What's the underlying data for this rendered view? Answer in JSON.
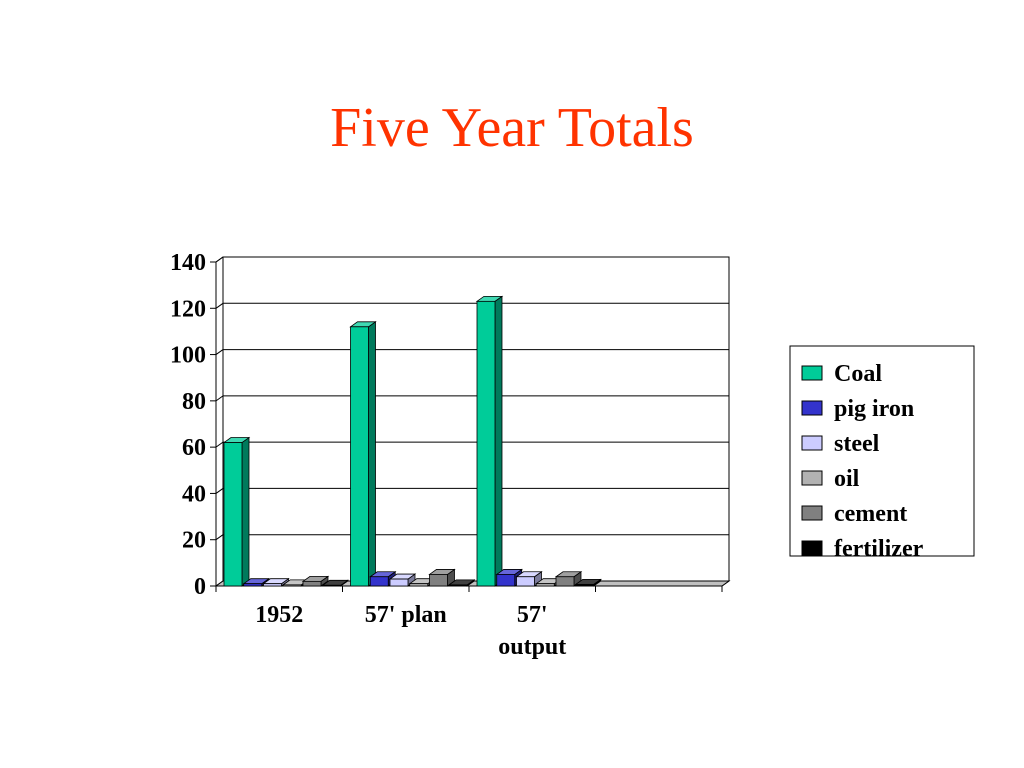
{
  "slide": {
    "title": "Five Year Totals",
    "title_color": "#ff3300"
  },
  "chart_data": {
    "type": "bar",
    "title": "Five Year Totals",
    "xlabel": "",
    "ylabel": "",
    "ylim": [
      0,
      140
    ],
    "yticks": [
      "0",
      "20",
      "40",
      "60",
      "80",
      "100",
      "120",
      "140"
    ],
    "categories": [
      "1952",
      "57' plan",
      "57' output"
    ],
    "category_lines": [
      [
        "1952"
      ],
      [
        "57' plan"
      ],
      [
        "57'",
        "output"
      ]
    ],
    "grid": true,
    "legend_position": "right",
    "series": [
      {
        "name": "Coal",
        "color": "#00cc99",
        "values": [
          62,
          112,
          123
        ]
      },
      {
        "name": "pig iron",
        "color": "#3333cc",
        "values": [
          1,
          4,
          5
        ]
      },
      {
        "name": "steel",
        "color": "#ccccff",
        "values": [
          1,
          3,
          4
        ]
      },
      {
        "name": "oil",
        "color": "#b2b2b2",
        "values": [
          0.5,
          1,
          1
        ]
      },
      {
        "name": "cement",
        "color": "#808080",
        "values": [
          2,
          5,
          4
        ]
      },
      {
        "name": "fertilizer",
        "color": "#000000",
        "values": [
          0.3,
          0.5,
          0.7
        ]
      }
    ]
  }
}
